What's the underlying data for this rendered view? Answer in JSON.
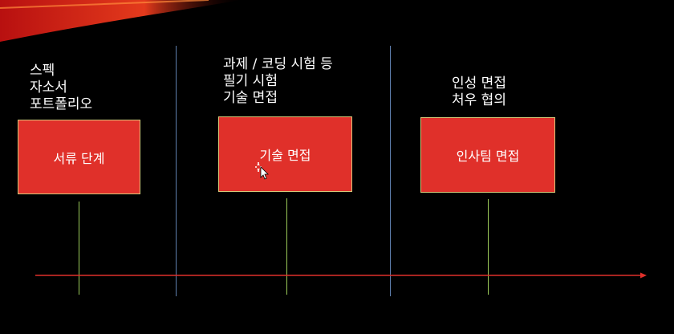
{
  "stages": [
    {
      "label": "서류 단계",
      "notes": [
        "스펙",
        "자소서",
        "포트폴리오"
      ]
    },
    {
      "label": "기술 면접",
      "notes": [
        "과제 / 코딩 시험 등",
        "필기 시험",
        "기술 면접"
      ]
    },
    {
      "label": "인사팀 면접",
      "notes": [
        "인성 면접",
        "처우 협의"
      ]
    }
  ],
  "colors": {
    "background": "#000000",
    "box_fill": "#e0302a",
    "box_border": "#d6c87a",
    "stem": "#9ccc5a",
    "divider": "#5f7fae",
    "timeline": "#e0302a"
  },
  "icons": {
    "cursor": "move-cursor-icon"
  }
}
